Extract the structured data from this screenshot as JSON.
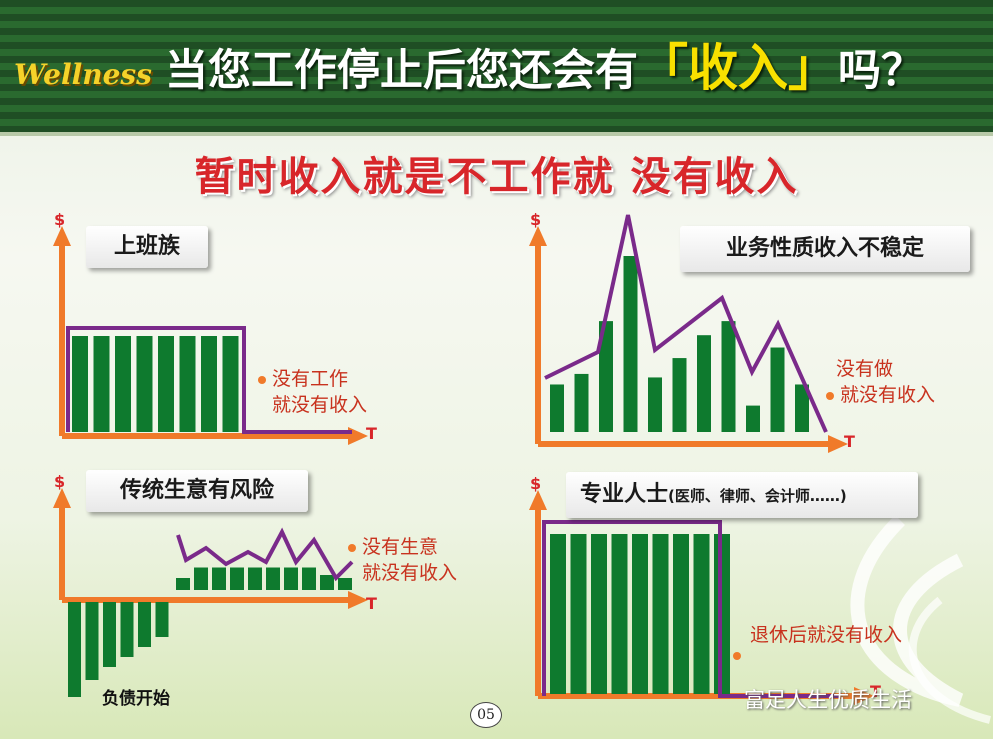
{
  "header": {
    "brand": "Wellness",
    "headline_prefix": "当您工作停止后您还会有",
    "headline_highlight": "「收入」",
    "headline_suffix": "吗？"
  },
  "subtitle": "暂时收入就是不工作就 没有收入",
  "axis": {
    "y_symbol": "$",
    "x_symbol": "T"
  },
  "panels": {
    "office_worker": {
      "label": "上班族",
      "note_line1": "没有工作",
      "note_line2": "就没有收入",
      "bars": [
        1,
        1,
        1,
        1,
        1,
        1,
        1,
        1
      ]
    },
    "business_income": {
      "label": "业务性质收入不稳定",
      "note_line1": "没有做",
      "note_line2": "就没有收入",
      "bars": [
        0.27,
        0.33,
        0.63,
        1.0,
        0.31,
        0.42,
        0.55,
        0.63,
        0.15,
        0.48,
        0.27
      ]
    },
    "traditional_business": {
      "label": "传统生意有风险",
      "note_line1": "没有生意",
      "note_line2": "就没有收入",
      "debt_label": "负债开始",
      "negative_bars": [
        -0.95,
        -0.78,
        -0.65,
        -0.55,
        -0.45,
        -0.35
      ],
      "positive_bars": [
        0.4,
        0.75,
        0.75,
        0.75,
        0.75,
        0.75,
        0.75,
        0.75,
        0.5,
        0.4
      ]
    },
    "professional": {
      "label_main": "专业人士",
      "label_sub": "(医师、律师、会计师……)",
      "note": "退休后就没有收入",
      "bars": [
        1,
        1,
        1,
        1,
        1,
        1,
        1,
        1,
        1
      ]
    }
  },
  "page_number": "05",
  "watermark": "富足人生优质生活",
  "colors": {
    "bar_green": "#0e7a2e",
    "axis_orange": "#f07a2a",
    "envelope_purple": "#7a2a8a",
    "note_red": "#c8321e",
    "headline_yellow": "#f8e000"
  }
}
